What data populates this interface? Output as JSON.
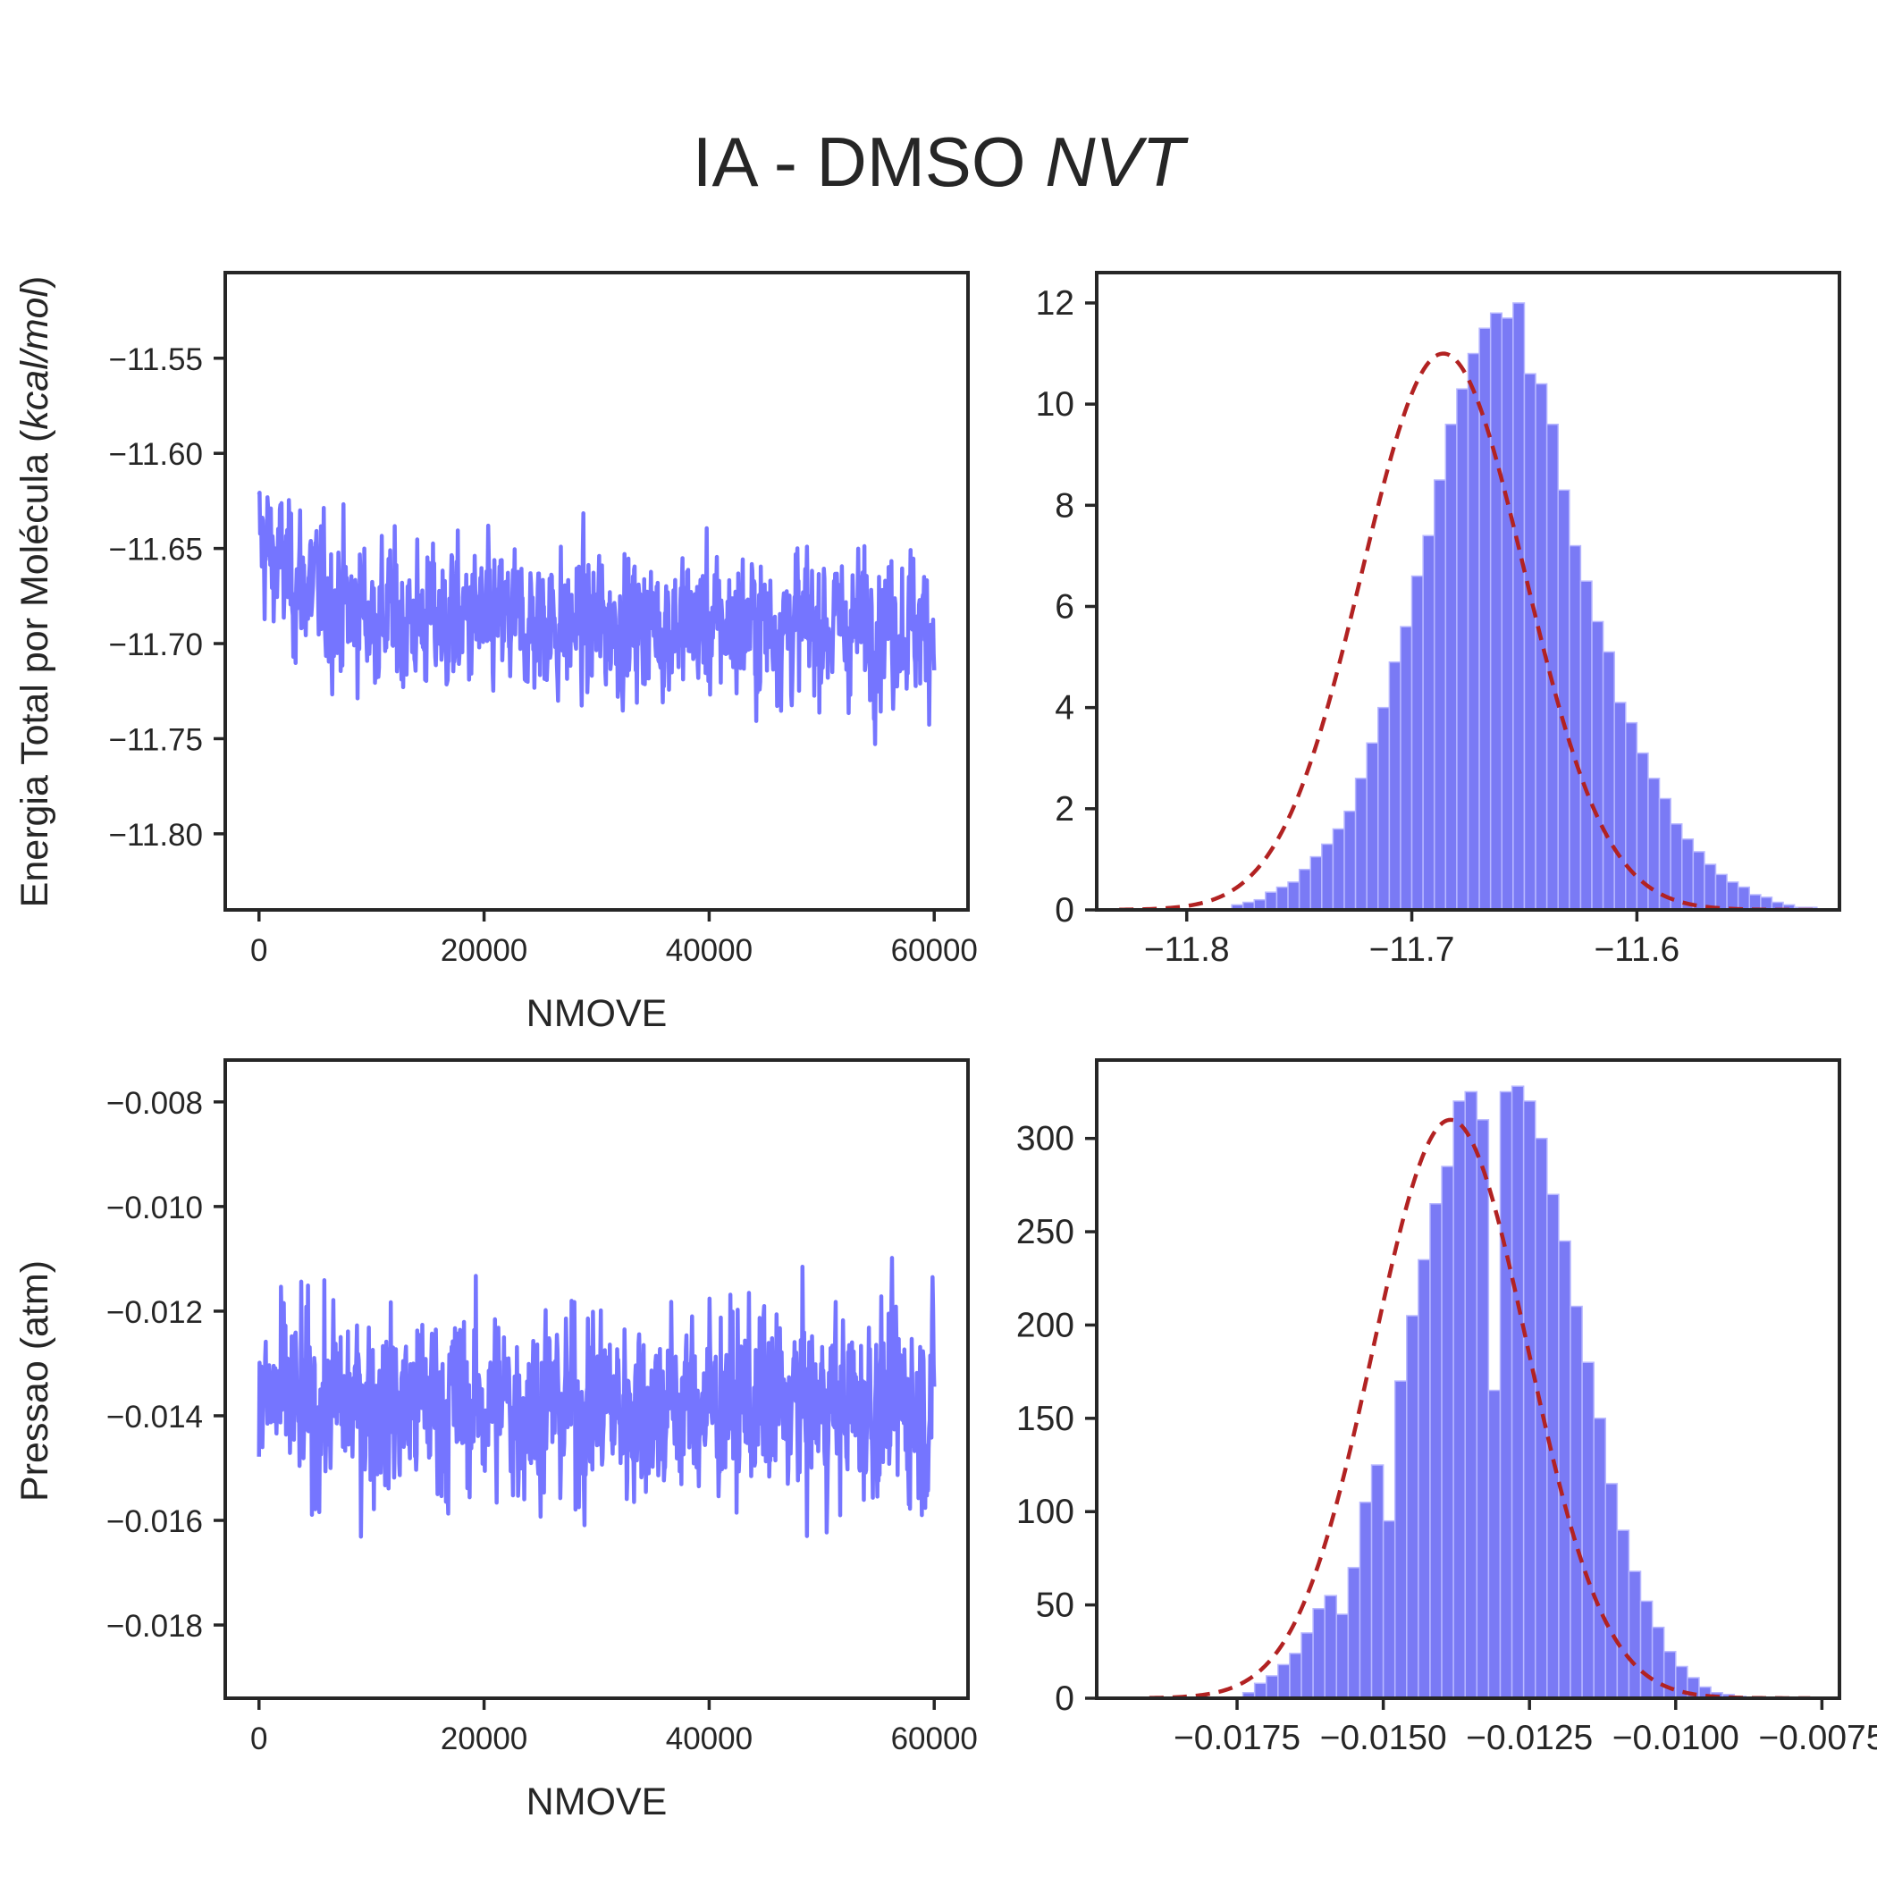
{
  "figure": {
    "title": {
      "main": "IA - DMSO ",
      "italic": "NVT"
    }
  },
  "colors": {
    "trace": "#7575ff",
    "bar_fill": "#7a7af5",
    "bar_edge": "#b8b8ff",
    "fit": "#b22222",
    "axes": "#262626"
  },
  "chart_data": [
    {
      "type": "line",
      "id": "energy-trace",
      "xlabel": "NMOVE",
      "ylabel": {
        "main": "Energia Total por Molécula (",
        "italic": "kcal/mol",
        "end": ")"
      },
      "xlim": [
        -3000,
        63000
      ],
      "ylim": [
        -11.84,
        -11.505
      ],
      "xticks": [
        0,
        20000,
        40000,
        60000
      ],
      "xtick_labels": [
        "0",
        "20000",
        "40000",
        "60000"
      ],
      "yticks": [
        -11.55,
        -11.6,
        -11.65,
        -11.7,
        -11.75,
        -11.8
      ],
      "ytick_labels": [
        "−11.55",
        "−11.60",
        "−11.65",
        "−11.70",
        "−11.75",
        "−11.80"
      ],
      "series": [
        {
          "x_range": [
            0,
            60000
          ],
          "n_points": 1200,
          "mean": -11.69,
          "std": 0.027,
          "initial_offset": 0.045,
          "min": -11.825,
          "max": -11.515,
          "color": "#7575ff"
        }
      ]
    },
    {
      "type": "bar",
      "id": "energy-histogram",
      "xlim": [
        -11.84,
        -11.51
      ],
      "ylim": [
        0,
        12.6
      ],
      "xticks": [
        -11.8,
        -11.7,
        -11.6
      ],
      "xtick_labels": [
        "−11.8",
        "−11.7",
        "−11.6"
      ],
      "yticks": [
        0,
        2,
        4,
        6,
        8,
        10,
        12
      ],
      "ytick_labels": [
        "0",
        "2",
        "4",
        "6",
        "8",
        "10",
        "12"
      ],
      "bins": {
        "start": -11.83,
        "width": 0.005
      },
      "values": [
        0,
        0,
        0,
        0,
        0,
        0,
        0,
        0,
        0,
        0,
        0.1,
        0.15,
        0.2,
        0.35,
        0.45,
        0.55,
        0.8,
        1.05,
        1.3,
        1.6,
        1.95,
        2.6,
        3.3,
        4.0,
        4.9,
        5.6,
        6.6,
        7.4,
        8.5,
        9.6,
        10.3,
        11.0,
        11.5,
        11.8,
        11.7,
        12.0,
        10.6,
        10.4,
        9.6,
        8.3,
        7.2,
        6.5,
        5.7,
        5.1,
        4.1,
        3.7,
        3.1,
        2.6,
        2.2,
        1.7,
        1.4,
        1.15,
        0.9,
        0.7,
        0.55,
        0.45,
        0.3,
        0.25,
        0.15,
        0.1,
        0.05,
        0.05,
        0,
        0,
        0,
        0,
        0,
        0,
        0,
        0
      ],
      "fit": {
        "type": "gaussian",
        "mean": -11.686,
        "std": 0.0362,
        "peak": 11.0,
        "x_range": [
          -11.83,
          -11.52
        ],
        "color": "#b22222"
      }
    },
    {
      "type": "line",
      "id": "pressure-trace",
      "xlabel": "NMOVE",
      "ylabel": "Pressao (atm)",
      "xlim": [
        -3000,
        63000
      ],
      "ylim": [
        -0.0194,
        -0.0072
      ],
      "xticks": [
        0,
        20000,
        40000,
        60000
      ],
      "xtick_labels": [
        "0",
        "20000",
        "40000",
        "60000"
      ],
      "yticks": [
        -0.008,
        -0.01,
        -0.012,
        -0.014,
        -0.016,
        -0.018
      ],
      "ytick_labels": [
        "−0.008",
        "−0.010",
        "−0.012",
        "−0.014",
        "−0.016",
        "−0.018"
      ],
      "series": [
        {
          "x_range": [
            0,
            60000
          ],
          "n_points": 1200,
          "mean": -0.0138,
          "std": 0.00128,
          "min": -0.0188,
          "max": -0.0077,
          "color": "#7575ff"
        }
      ]
    },
    {
      "type": "bar",
      "id": "pressure-histogram",
      "xlim": [
        -0.0199,
        -0.0072
      ],
      "ylim": [
        0,
        342
      ],
      "xticks": [
        -0.0175,
        -0.015,
        -0.0125,
        -0.01,
        -0.0075
      ],
      "xtick_labels": [
        "−0.0175",
        "−0.0150",
        "−0.0125",
        "−0.0100",
        "−0.0075"
      ],
      "yticks": [
        0,
        50,
        100,
        150,
        200,
        250,
        300
      ],
      "ytick_labels": [
        "0",
        "50",
        "100",
        "150",
        "200",
        "250",
        "300"
      ],
      "bins": {
        "start": -0.019,
        "width": 0.0002
      },
      "values": [
        0,
        0,
        0,
        0,
        0,
        0,
        0,
        0,
        3,
        8,
        12,
        18,
        24,
        35,
        48,
        55,
        45,
        70,
        105,
        125,
        95,
        170,
        205,
        235,
        265,
        285,
        320,
        325,
        310,
        165,
        325,
        328,
        320,
        300,
        270,
        245,
        210,
        180,
        150,
        115,
        90,
        68,
        52,
        38,
        25,
        17,
        11,
        6,
        3,
        2,
        1,
        0,
        0,
        0,
        0,
        0,
        0,
        0,
        0,
        0
      ],
      "fit": {
        "type": "gaussian",
        "mean": -0.01385,
        "std": 0.00132,
        "peak": 310,
        "x_range": [
          -0.019,
          -0.0077
        ],
        "color": "#b22222"
      }
    }
  ]
}
